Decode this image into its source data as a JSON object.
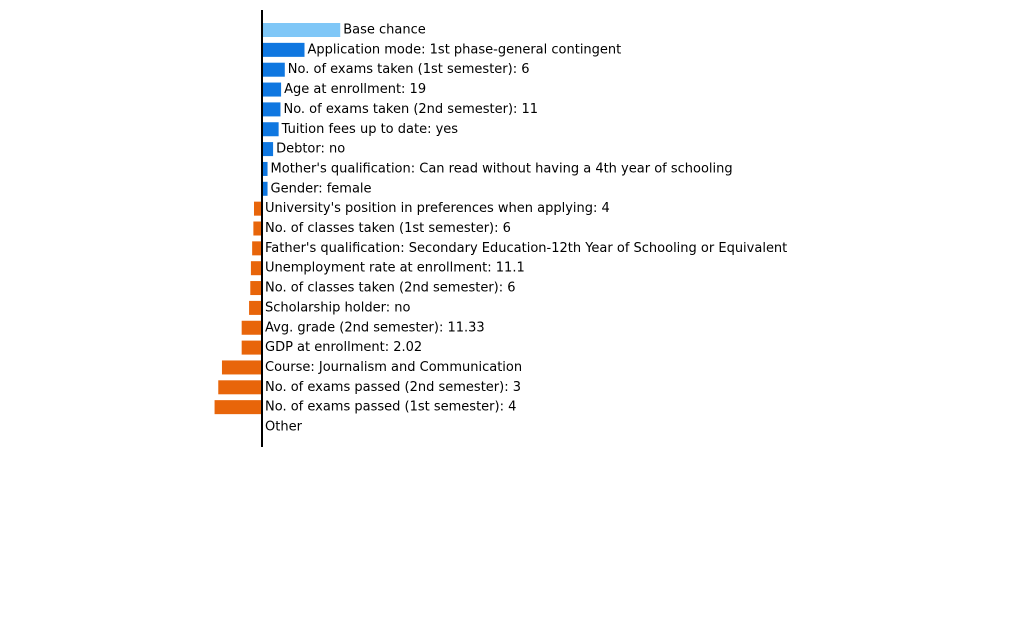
{
  "colors": {
    "base": "#7fc7f7",
    "positive": "#0f77e0",
    "negative": "#e8650a",
    "axis": "#000000",
    "text": "#000000"
  },
  "chart_data": {
    "type": "bar",
    "orientation": "horizontal",
    "title": "",
    "xlabel": "",
    "ylabel": "",
    "grid": false,
    "legend": "none",
    "baseline": 0,
    "xlim": [
      -0.085,
      0.14
    ],
    "categories": [
      "Base chance",
      "Application mode: 1st phase-general contingent",
      "No. of exams taken (1st semester): 6",
      "Age at enrollment: 19",
      "No. of exams taken (2nd semester): 11",
      "Tuition fees up to date: yes",
      "Debtor: no",
      "Mother's qualification: Can read without having a 4th year of schooling",
      "Gender: female",
      "University's position in preferences when applying: 4",
      "No. of classes taken (1st semester): 6",
      "Father's qualification: Secondary Education-12th Year of Schooling or Equivalent",
      "Unemployment rate at enrollment: 11.1",
      "No. of classes taken (2nd semester): 6",
      "Scholarship holder: no",
      "Avg. grade (2nd semester): 11.33",
      "GDP at enrollment: 2.02",
      "Course: Journalism and Communication",
      "No. of exams passed (2nd semester): 3",
      "No. of exams passed (1st semester): 4",
      "Other"
    ],
    "values": [
      0.127,
      0.069,
      0.037,
      0.031,
      0.03,
      0.027,
      0.018,
      0.009,
      0.009,
      -0.013,
      -0.014,
      -0.016,
      -0.018,
      -0.019,
      -0.021,
      -0.033,
      -0.033,
      -0.065,
      -0.071,
      -0.077,
      0.0
    ],
    "series_kind": [
      "base",
      "positive",
      "positive",
      "positive",
      "positive",
      "positive",
      "positive",
      "positive",
      "positive",
      "negative",
      "negative",
      "negative",
      "negative",
      "negative",
      "negative",
      "negative",
      "negative",
      "negative",
      "negative",
      "negative",
      "none"
    ]
  }
}
